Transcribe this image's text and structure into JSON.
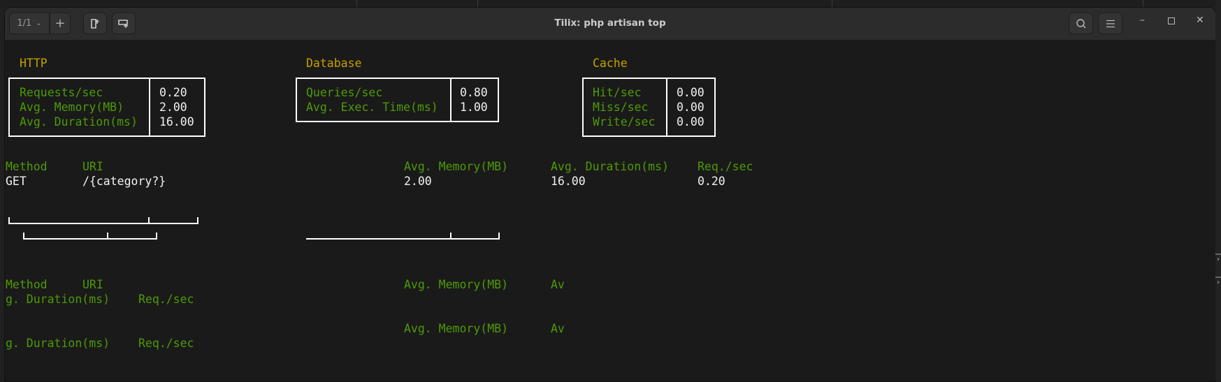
{
  "window": {
    "title": "Tilix: php artisan top",
    "session_label": "1/1",
    "icons": [
      "chevron-down-icon",
      "plus-icon",
      "add-terminal-right-icon",
      "add-terminal-down-icon",
      "search-icon",
      "hamburger-menu-icon",
      "minimize-icon",
      "maximize-icon",
      "close-icon"
    ]
  },
  "colors": {
    "header": "#c4a000",
    "label": "#4e9a06",
    "value": "#f2f2f2",
    "background": "#1a1a1a"
  },
  "panels": {
    "http": {
      "title": "HTTP",
      "rows": [
        {
          "label": "Requests/sec",
          "value": "0.20"
        },
        {
          "label": "Avg. Memory(MB)",
          "value": "2.00"
        },
        {
          "label": "Avg. Duration(ms)",
          "value": "16.00"
        }
      ]
    },
    "database": {
      "title": "Database",
      "rows": [
        {
          "label": "Queries/sec",
          "value": "0.80"
        },
        {
          "label": "Avg. Exec. Time(ms)",
          "value": "1.00"
        }
      ]
    },
    "cache": {
      "title": "Cache",
      "rows": [
        {
          "label": "Hit/sec",
          "value": "0.00"
        },
        {
          "label": "Miss/sec",
          "value": "0.00"
        },
        {
          "label": "Write/sec",
          "value": "0.00"
        }
      ]
    }
  },
  "routes": {
    "headers": [
      "Method",
      "URI",
      "Avg. Memory(MB)",
      "Avg. Duration(ms)",
      "Req./sec"
    ],
    "rows": [
      [
        "GET",
        "/{category?}",
        "2.00",
        "16.00",
        "0.20"
      ]
    ]
  },
  "garbled": {
    "line1": [
      "Method",
      "URI",
      "Avg. Memory(MB)",
      "Av"
    ],
    "line2": [
      "g. Duration(ms)",
      "Req./sec"
    ],
    "line3": [
      "Avg. Memory(MB)",
      "Av"
    ],
    "line4": [
      "g. Duration(ms)",
      "Req./sec"
    ]
  }
}
